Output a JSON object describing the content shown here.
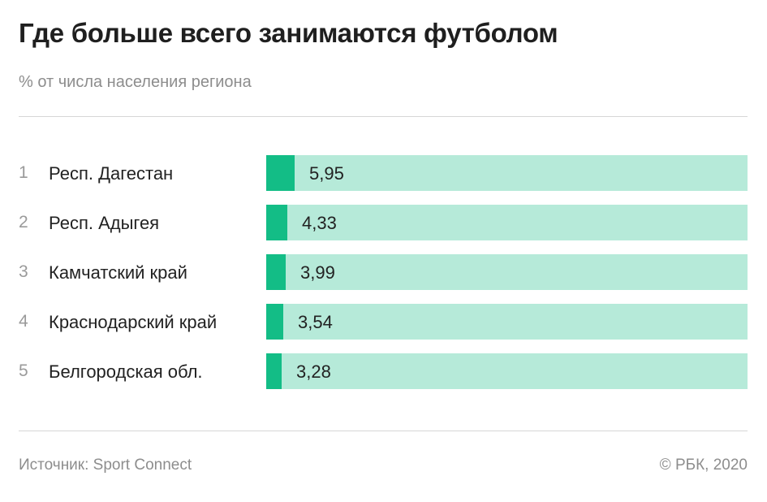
{
  "chart_data": {
    "type": "bar",
    "orientation": "horizontal",
    "title": "Где больше всего занимаются футболом",
    "subtitle": "% от числа населения региона",
    "ranks": [
      "1",
      "2",
      "3",
      "4",
      "5"
    ],
    "categories": [
      "Респ. Дагестан",
      "Респ. Адыгея",
      "Камчатский край",
      "Краснодарский край",
      "Белгородская обл."
    ],
    "values": [
      5.95,
      4.33,
      3.99,
      3.54,
      3.28
    ],
    "value_labels": [
      "5,95",
      "4,33",
      "3,99",
      "3,54",
      "3,28"
    ],
    "xlim": [
      0,
      100
    ],
    "colors": {
      "bar": "#13bd86",
      "track": "#b6ead9"
    }
  },
  "footer": {
    "source": "Источник: Sport Connect",
    "copyright": "© РБК, 2020"
  }
}
